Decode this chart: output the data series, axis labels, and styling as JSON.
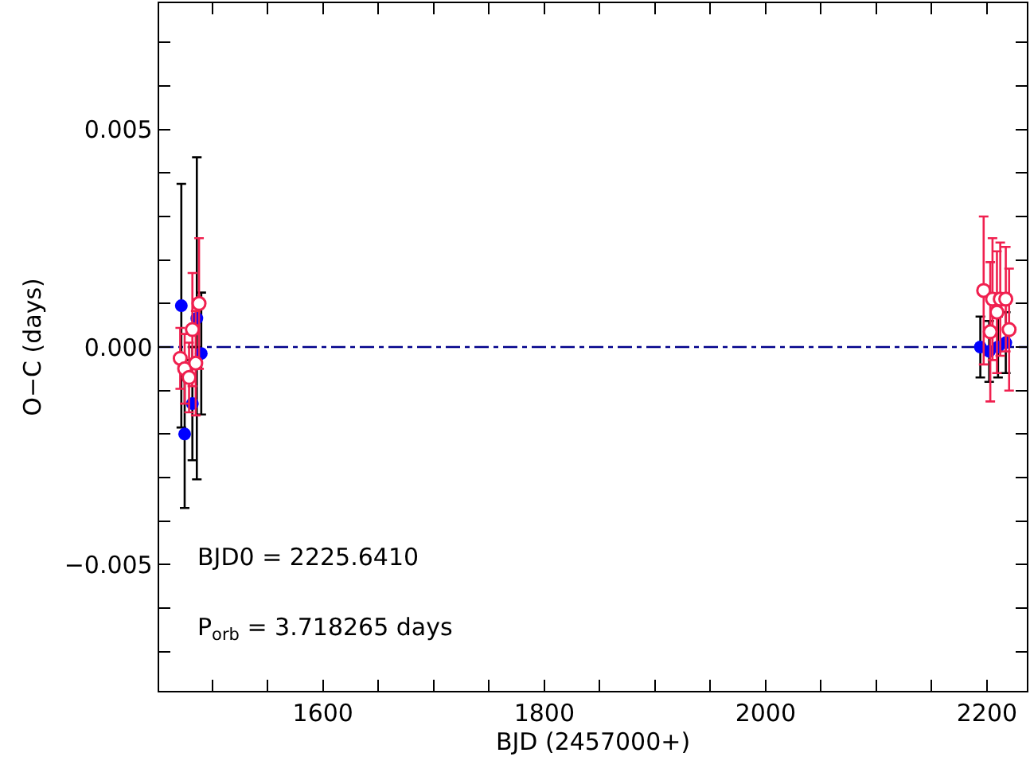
{
  "chart_data": {
    "type": "scatter",
    "xlabel": "BJD (2457000+)",
    "ylabel": "O−C (days)",
    "xlim": [
      1452,
      2236
    ],
    "xticks": [
      {
        "value": 1500,
        "label": null
      },
      {
        "value": 1550,
        "label": null
      },
      1600,
      {
        "value": 1650,
        "label": null
      },
      {
        "value": 1700,
        "label": null
      },
      {
        "value": 1750,
        "label": null
      },
      1800,
      {
        "value": 1850,
        "label": null
      },
      {
        "value": 1900,
        "label": null
      },
      {
        "value": 1950,
        "label": null
      },
      2000,
      {
        "value": 2050,
        "label": null
      },
      {
        "value": 2100,
        "label": null
      },
      {
        "value": 2150,
        "label": null
      },
      2200
    ],
    "ylim": [
      -0.0079,
      0.0079
    ],
    "yticks": [
      {
        "value": -0.007,
        "label": null
      },
      {
        "value": -0.006,
        "label": null
      },
      {
        "value": -0.005,
        "label": "−0.005"
      },
      {
        "value": -0.004,
        "label": null
      },
      {
        "value": -0.003,
        "label": null
      },
      {
        "value": -0.002,
        "label": null
      },
      {
        "value": -0.001,
        "label": null
      },
      {
        "value": 0,
        "label": "0.000"
      },
      {
        "value": 0.001,
        "label": null
      },
      {
        "value": 0.002,
        "label": null
      },
      {
        "value": 0.003,
        "label": null
      },
      {
        "value": 0.004,
        "label": null
      },
      0.005,
      {
        "value": 0.006,
        "label": null
      },
      {
        "value": 0.007,
        "label": null
      }
    ],
    "grid": false,
    "marker": "circle",
    "series": [
      {
        "color": "#0000ff",
        "x": [
          1472,
          1475,
          1482,
          1486,
          1490,
          2194,
          2202,
          2210,
          2217
        ],
        "values": [
          0.00095,
          -0.002,
          -0.0013,
          0.00066,
          -0.00015,
          0,
          -0.0001,
          0,
          0.0001
        ],
        "errors": [
          0.0028,
          0.0017,
          0.0013,
          0.0037,
          0.0014,
          0.0007,
          0.0007,
          0.0007,
          0.0007
        ]
      },
      {
        "color": "#f0204f",
        "x": [
          1471,
          1475,
          1479,
          1482,
          1485,
          1488,
          2197,
          2203,
          2205,
          2209,
          2212,
          2217,
          2220
        ],
        "values": [
          -0.00026,
          -0.0005,
          -0.0007,
          0.0004,
          -0.00037,
          0.001,
          0.0013,
          0.00035,
          0.0011,
          0.0008,
          0.0011,
          0.0011,
          0.0004
        ],
        "errors": [
          0.0007,
          0.0008,
          0.0008,
          0.0013,
          0.0012,
          0.0015,
          0.0017,
          0.0016,
          0.0014,
          0.0014,
          0.0013,
          0.0012,
          0.0014
        ]
      }
    ],
    "ref_lines": [
      {
        "axis": "y",
        "value": 0,
        "color": "#00008b",
        "line_style": "dashdot"
      }
    ],
    "annotations": [
      "BJD0 = 2225.6410",
      "P$_{orb}$ = 3.718265 days"
    ]
  }
}
